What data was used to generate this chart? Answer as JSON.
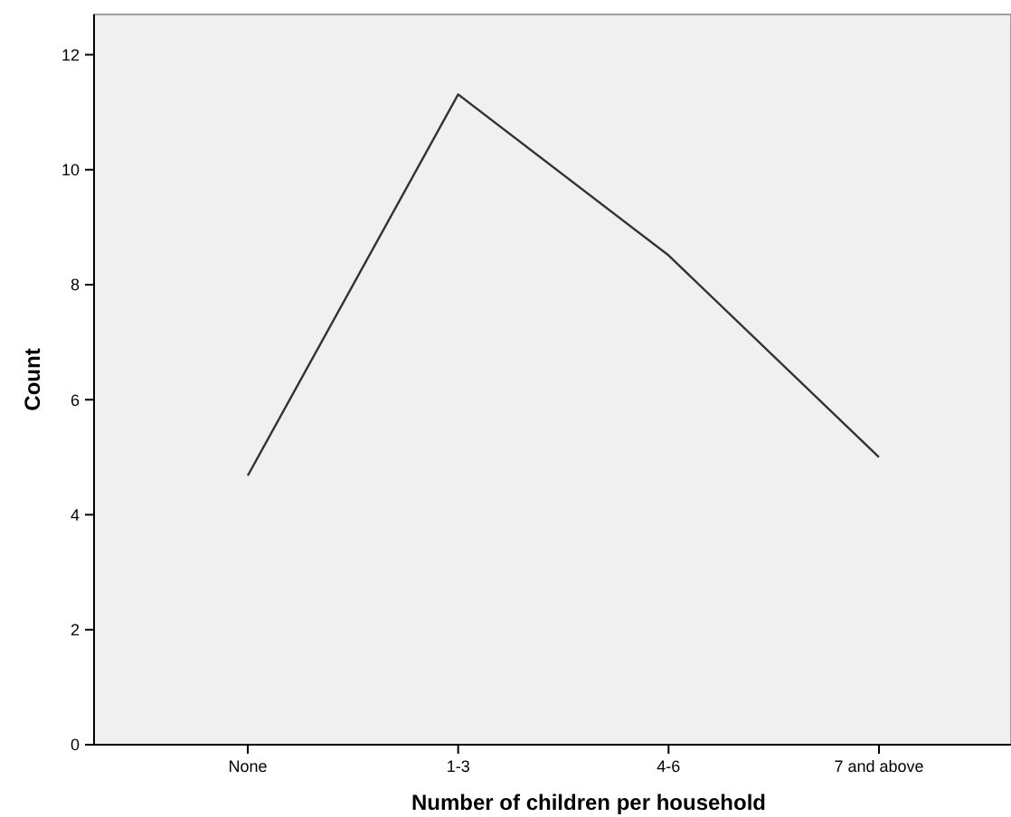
{
  "chart_data": {
    "type": "line",
    "xlabel": "Number of children per household",
    "ylabel": "Count",
    "categories": [
      "None",
      "1-3",
      "4-6",
      "7 and above"
    ],
    "series": [
      {
        "color": "#333333",
        "values": [
          4.68,
          11.31,
          8.51,
          5.0
        ]
      }
    ],
    "ylim": [
      0,
      12.7
    ],
    "yticks": [
      0,
      2,
      4,
      6,
      8,
      10,
      12
    ],
    "grid": false,
    "marker": "none"
  }
}
